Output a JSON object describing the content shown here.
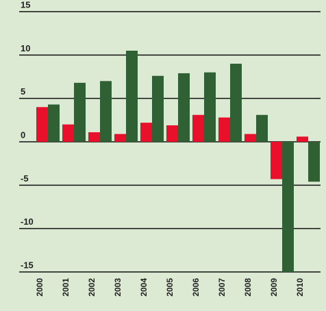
{
  "chart_data": {
    "type": "bar",
    "categories": [
      "2000",
      "2001",
      "2002",
      "2003",
      "2004",
      "2005",
      "2006",
      "2007",
      "2008",
      "2009",
      "2010"
    ],
    "series": [
      {
        "color": "#e8102a",
        "values": [
          4.0,
          2.0,
          1.1,
          0.9,
          2.2,
          1.9,
          3.1,
          2.8,
          0.9,
          -4.3,
          0.6
        ]
      },
      {
        "color": "#2f6135",
        "values": [
          4.3,
          6.8,
          7.0,
          10.5,
          7.6,
          7.9,
          8.0,
          9.0,
          3.1,
          -15,
          -4.6
        ]
      }
    ],
    "ylim": [
      -15,
      15
    ],
    "yticks": [
      -15,
      -10,
      -5,
      0,
      5,
      10,
      15
    ],
    "grid": true
  }
}
